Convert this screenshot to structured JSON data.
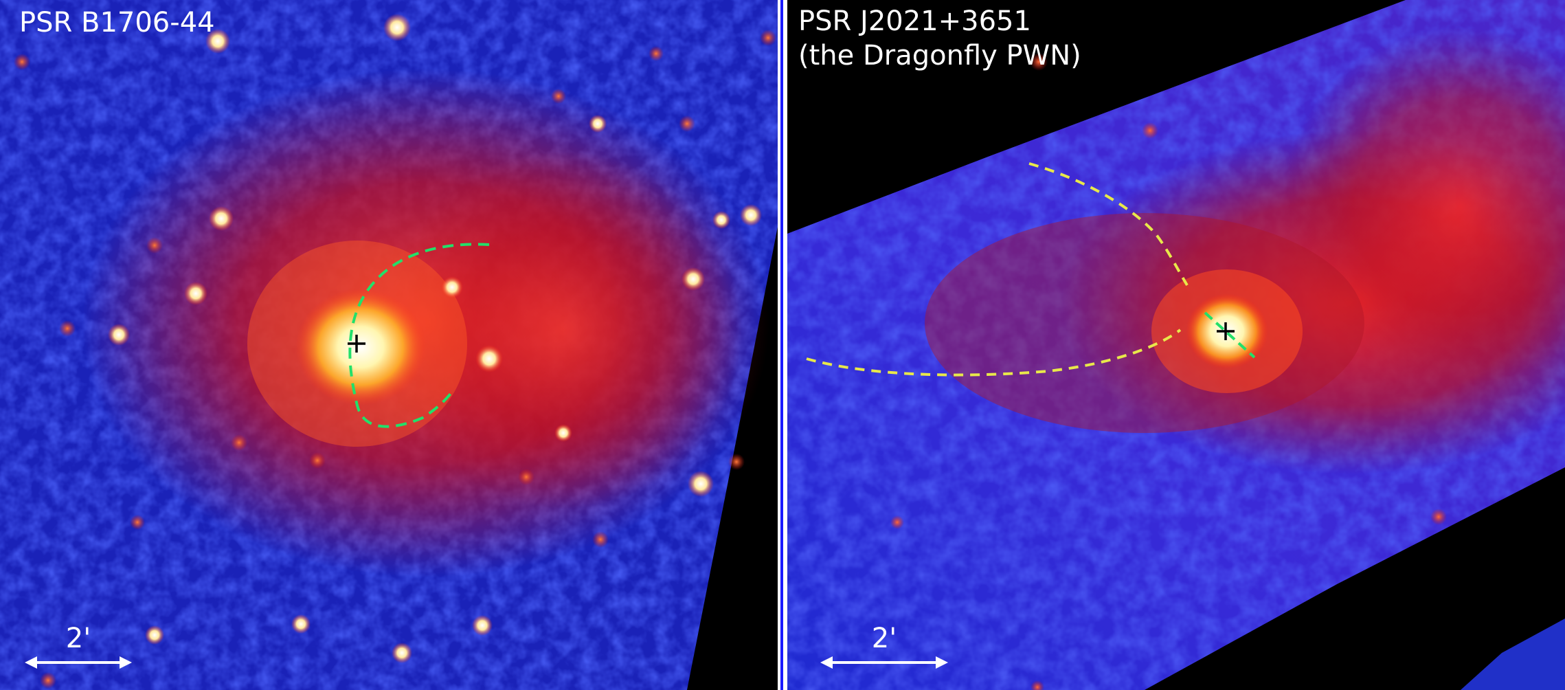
{
  "panels": {
    "left": {
      "label": "PSR B1706-44",
      "scale_label": "2'"
    },
    "right": {
      "label": "PSR J2021+3651\n(the Dragonfly PWN)",
      "scale_label": "2'"
    }
  },
  "colors": {
    "background_sky": "#0a0a55",
    "diffuse_blue": "#1f2bd6",
    "nebula_red": "#d81818",
    "bright_core": "#fff6b0",
    "torus_outline_green": "#22e06a",
    "arc_outline_yellow": "#e8e84a",
    "divider": "#ffffff",
    "masked_region": "#000000"
  }
}
